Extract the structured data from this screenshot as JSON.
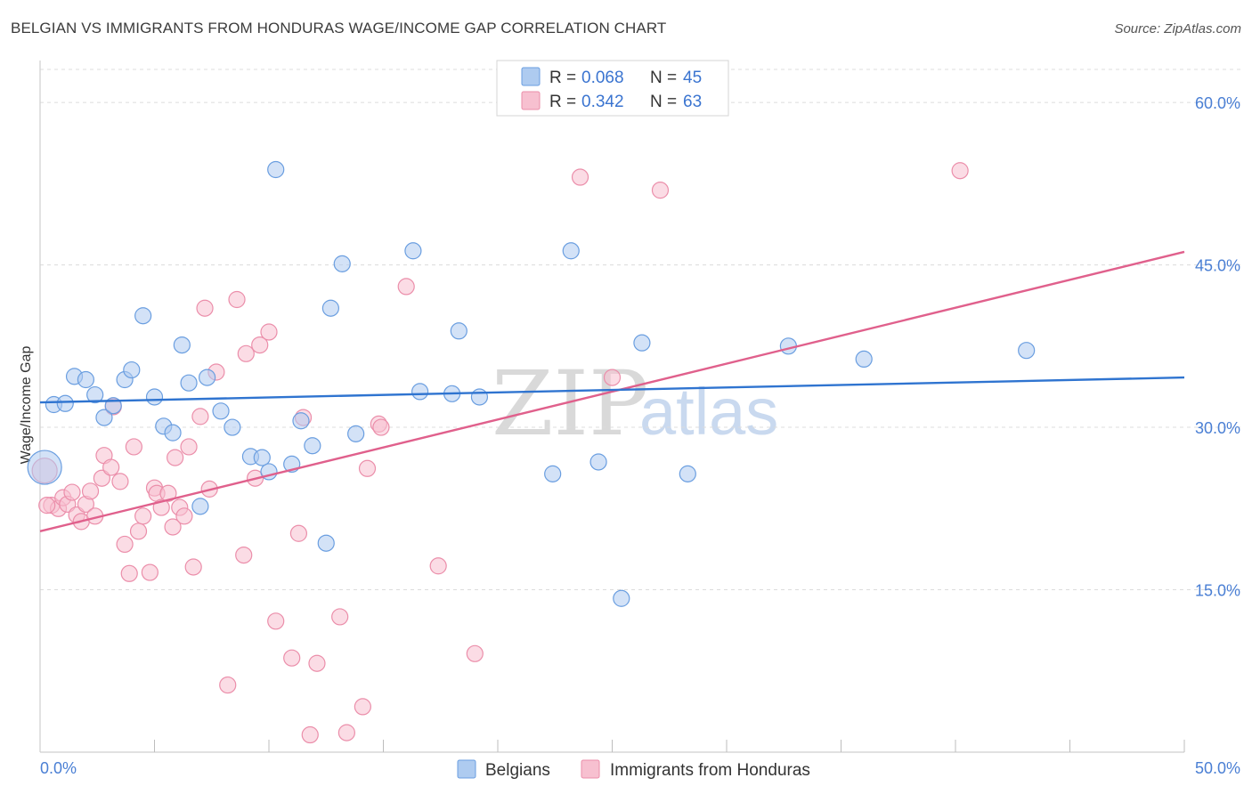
{
  "header": {
    "title": "BELGIAN VS IMMIGRANTS FROM HONDURAS WAGE/INCOME GAP CORRELATION CHART",
    "source": "Source: ZipAtlas.com"
  },
  "colors": {
    "belgians_fill": "#aecbf0",
    "belgians_stroke": "#6a9ee0",
    "belgians_line": "#2f74d0",
    "honduras_fill": "#f7c0d0",
    "honduras_stroke": "#eb8eaa",
    "honduras_line": "#e0608c",
    "grid": "#dcdcdc",
    "tick_text": "#4a7fd4"
  },
  "legend": {
    "rows": [
      {
        "r_label": "R =",
        "r_value": "0.068",
        "n_label": "N =",
        "n_value": "45"
      },
      {
        "r_label": "R =",
        "r_value": "0.342",
        "n_label": "N =",
        "n_value": "63"
      }
    ]
  },
  "bottom_legend": {
    "items": [
      "Belgians",
      "Immigrants from Honduras"
    ]
  },
  "watermark": {
    "zip": "ZIP",
    "atlas": "atlas"
  },
  "chart_data": {
    "type": "scatter",
    "title": "BELGIAN VS IMMIGRANTS FROM HONDURAS WAGE/INCOME GAP CORRELATION CHART",
    "xlabel": "",
    "ylabel": "Wage/Income Gap",
    "xlim": [
      0,
      50
    ],
    "ylim": [
      0,
      63
    ],
    "x_tick_labels": [
      "0.0%",
      "50.0%"
    ],
    "y_ticks": [
      15,
      30,
      45,
      60
    ],
    "y_tick_labels": [
      "15.0%",
      "30.0%",
      "45.0%",
      "60.0%"
    ],
    "grid": true,
    "series": [
      {
        "name": "Belgians",
        "R": 0.068,
        "N": 45,
        "trend": {
          "x": [
            0,
            50
          ],
          "y": [
            32.3,
            34.6
          ]
        },
        "points": [
          [
            0.2,
            26.3
          ],
          [
            0.6,
            32.1
          ],
          [
            1.1,
            32.2
          ],
          [
            1.5,
            34.7
          ],
          [
            2.0,
            34.4
          ],
          [
            2.4,
            33.0
          ],
          [
            2.8,
            30.9
          ],
          [
            3.2,
            32.0
          ],
          [
            3.7,
            34.4
          ],
          [
            4.0,
            35.3
          ],
          [
            4.5,
            40.3
          ],
          [
            5.0,
            32.8
          ],
          [
            5.4,
            30.1
          ],
          [
            5.8,
            29.5
          ],
          [
            6.2,
            37.6
          ],
          [
            6.5,
            34.1
          ],
          [
            7.0,
            22.7
          ],
          [
            7.3,
            34.6
          ],
          [
            7.9,
            31.5
          ],
          [
            8.4,
            30.0
          ],
          [
            9.2,
            27.3
          ],
          [
            9.7,
            27.2
          ],
          [
            10.0,
            25.9
          ],
          [
            10.3,
            53.8
          ],
          [
            11.0,
            26.6
          ],
          [
            11.4,
            30.6
          ],
          [
            11.9,
            28.3
          ],
          [
            12.5,
            19.3
          ],
          [
            12.7,
            41.0
          ],
          [
            13.2,
            45.1
          ],
          [
            13.8,
            29.4
          ],
          [
            16.3,
            46.3
          ],
          [
            16.6,
            33.3
          ],
          [
            18.0,
            33.1
          ],
          [
            18.3,
            38.9
          ],
          [
            19.2,
            32.8
          ],
          [
            22.4,
            25.7
          ],
          [
            23.2,
            46.3
          ],
          [
            24.4,
            26.8
          ],
          [
            25.4,
            14.2
          ],
          [
            26.3,
            37.8
          ],
          [
            28.3,
            25.7
          ],
          [
            32.7,
            37.5
          ],
          [
            36.0,
            36.3
          ],
          [
            43.1,
            37.1
          ]
        ]
      },
      {
        "name": "Immigrants from Honduras",
        "R": 0.342,
        "N": 63,
        "trend": {
          "x": [
            0,
            50
          ],
          "y": [
            20.4,
            46.2
          ]
        },
        "points": [
          [
            0.2,
            26.0
          ],
          [
            0.5,
            22.8
          ],
          [
            0.8,
            22.5
          ],
          [
            1.0,
            23.5
          ],
          [
            1.2,
            22.9
          ],
          [
            1.4,
            24.0
          ],
          [
            1.6,
            21.9
          ],
          [
            1.8,
            21.3
          ],
          [
            2.0,
            22.9
          ],
          [
            2.2,
            24.1
          ],
          [
            2.4,
            21.8
          ],
          [
            2.7,
            25.3
          ],
          [
            2.8,
            27.4
          ],
          [
            3.1,
            26.3
          ],
          [
            3.2,
            31.9
          ],
          [
            3.5,
            25.0
          ],
          [
            3.7,
            19.2
          ],
          [
            3.9,
            16.5
          ],
          [
            4.1,
            28.2
          ],
          [
            4.3,
            20.4
          ],
          [
            4.5,
            21.8
          ],
          [
            4.8,
            16.6
          ],
          [
            5.0,
            24.4
          ],
          [
            5.1,
            23.9
          ],
          [
            5.3,
            22.6
          ],
          [
            5.6,
            23.9
          ],
          [
            5.8,
            20.8
          ],
          [
            5.9,
            27.2
          ],
          [
            6.1,
            22.6
          ],
          [
            6.3,
            21.8
          ],
          [
            6.5,
            28.2
          ],
          [
            6.7,
            17.1
          ],
          [
            7.0,
            31.0
          ],
          [
            7.2,
            41.0
          ],
          [
            7.4,
            24.3
          ],
          [
            7.7,
            35.1
          ],
          [
            8.2,
            6.2
          ],
          [
            8.6,
            41.8
          ],
          [
            8.9,
            18.2
          ],
          [
            9.0,
            36.8
          ],
          [
            9.4,
            25.3
          ],
          [
            9.6,
            37.6
          ],
          [
            10.0,
            38.8
          ],
          [
            10.3,
            12.1
          ],
          [
            11.0,
            8.7
          ],
          [
            11.3,
            20.2
          ],
          [
            11.5,
            30.9
          ],
          [
            11.8,
            1.6
          ],
          [
            12.1,
            8.2
          ],
          [
            13.1,
            12.5
          ],
          [
            13.4,
            1.8
          ],
          [
            14.1,
            4.2
          ],
          [
            14.3,
            26.2
          ],
          [
            14.8,
            30.3
          ],
          [
            14.9,
            30.0
          ],
          [
            16.0,
            43.0
          ],
          [
            17.4,
            17.2
          ],
          [
            19.0,
            9.1
          ],
          [
            23.6,
            53.1
          ],
          [
            25.0,
            34.6
          ],
          [
            27.1,
            51.9
          ],
          [
            40.2,
            53.7
          ],
          [
            0.3,
            22.8
          ]
        ]
      }
    ]
  }
}
